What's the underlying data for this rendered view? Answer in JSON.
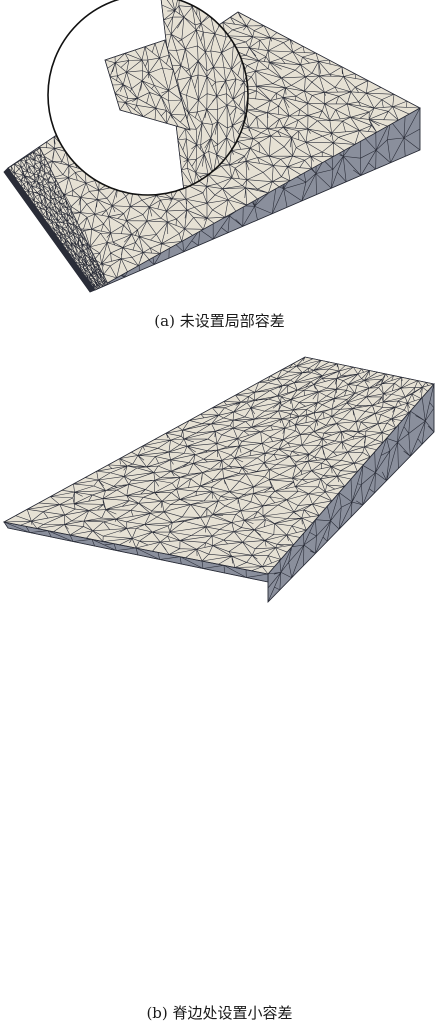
{
  "figure": {
    "panels": [
      {
        "caption": "(a) 未设置局部容差",
        "mesh_resolution": "coarse with dense refinement near left edge",
        "inset_magnifier": true
      },
      {
        "caption": "(b) 脊边处设置小容差",
        "mesh_resolution": "uniform",
        "inset_magnifier": false
      }
    ]
  },
  "colors": {
    "surface": "#e6e1d4",
    "side_face": "#8a8f9c",
    "mesh_line": "#2a2d38",
    "inset_border": "#111111"
  }
}
